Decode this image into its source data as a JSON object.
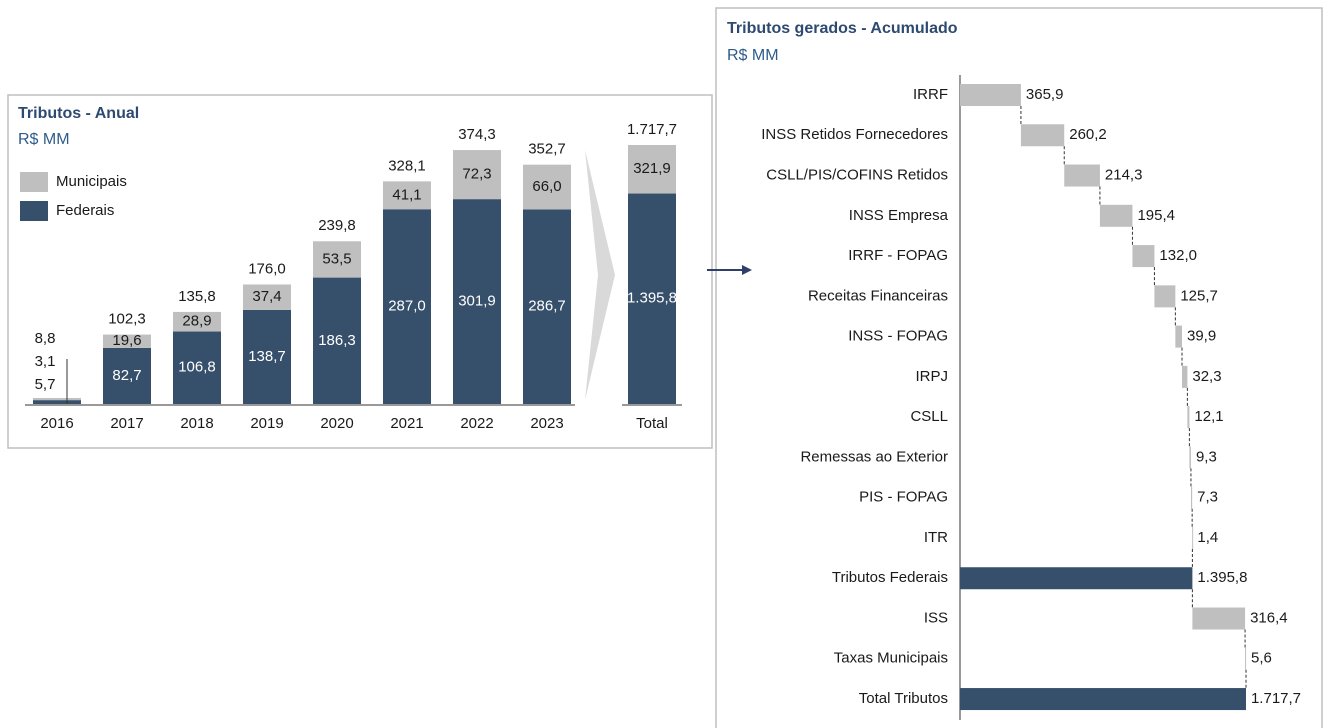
{
  "chart_data": [
    {
      "type": "stacked_bar",
      "title": "Tributos - Anual",
      "subtitle": "R$ MM",
      "categories": [
        "2016",
        "2017",
        "2018",
        "2019",
        "2020",
        "2021",
        "2022",
        "2023"
      ],
      "series": [
        {
          "name": "Federais",
          "color": "#364f6b",
          "values": [
            5.7,
            82.7,
            106.8,
            138.7,
            186.3,
            287.0,
            301.9,
            286.7
          ],
          "value_labels": [
            "5,7",
            "82,7",
            "106,8",
            "138,7",
            "186,3",
            "287,0",
            "301,9",
            "286,7"
          ]
        },
        {
          "name": "Municipais",
          "color": "#bfbfbf",
          "values": [
            3.1,
            19.6,
            28.9,
            37.4,
            53.5,
            41.1,
            72.3,
            66.0
          ],
          "value_labels": [
            "3,1",
            "19,6",
            "28,9",
            "37,4",
            "53,5",
            "41,1",
            "72,3",
            "66,0"
          ]
        }
      ],
      "totals": [
        8.8,
        102.3,
        135.8,
        176.0,
        239.8,
        328.1,
        374.3,
        352.7
      ],
      "total_labels": [
        "8,8",
        "102,3",
        "135,8",
        "176,0",
        "239,8",
        "328,1",
        "374,3",
        "352,7"
      ]
    },
    {
      "type": "stacked_bar",
      "categories": [
        "Total"
      ],
      "series": [
        {
          "color": "#364f6b",
          "values": [
            1395.8
          ],
          "value_labels": [
            "1.395,8"
          ]
        },
        {
          "color": "#bfbfbf",
          "values": [
            321.9
          ],
          "value_labels": [
            "321,9"
          ]
        }
      ],
      "totals": [
        1717.7
      ],
      "total_labels": [
        "1.717,7"
      ]
    },
    {
      "type": "waterfall",
      "title": "Tributos gerados - Acumulado",
      "subtitle": "R$ MM",
      "categories": [
        "IRRF",
        "INSS Retidos Fornecedores",
        "CSLL/PIS/COFINS Retidos",
        "INSS Empresa",
        "IRRF - FOPAG",
        "Receitas Financeiras",
        "INSS - FOPAG",
        "IRPJ",
        "CSLL",
        "Remessas ao Exterior",
        "PIS - FOPAG",
        "ITR",
        "Tributos Federais",
        "ISS",
        "Taxas Municipais",
        "Total Tributos"
      ],
      "values": [
        365.9,
        260.2,
        214.3,
        195.4,
        132.0,
        125.7,
        39.9,
        32.3,
        12.1,
        9.3,
        7.3,
        1.4,
        1395.8,
        316.4,
        5.6,
        1717.7
      ],
      "value_labels": [
        "365,9",
        "260,2",
        "214,3",
        "195,4",
        "132,0",
        "125,7",
        "39,9",
        "32,3",
        "12,1",
        "9,3",
        "7,3",
        "1,4",
        "1.395,8",
        "316,4",
        "5,6",
        "1.717,7"
      ],
      "is_total": [
        false,
        false,
        false,
        false,
        false,
        false,
        false,
        false,
        false,
        false,
        false,
        false,
        true,
        false,
        false,
        true
      ],
      "color": "#bfbfbf",
      "total_color": "#364f6b"
    }
  ]
}
